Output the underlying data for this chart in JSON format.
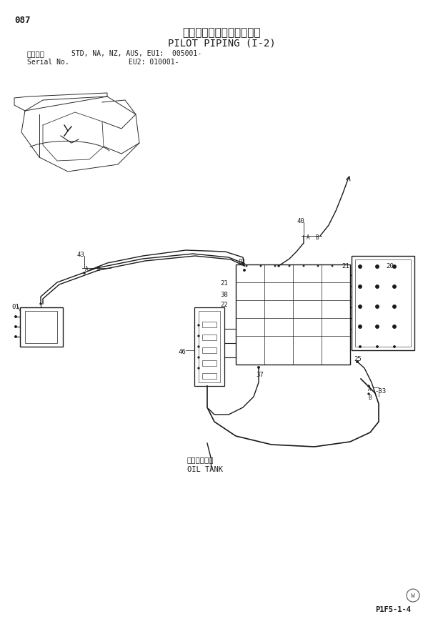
{
  "page_num": "087",
  "title_jp": "パイロット配管（１－２）",
  "title_en": "PILOT PIPING (I-2)",
  "model_label": "適用号機",
  "model_text": "STD, NA, NZ, AUS, EU1:  005001-",
  "serial_label": "Serial No.",
  "serial_eu2": "EU2: 010001-",
  "footer_code": "P1F5-1-4",
  "bg_color": "#ffffff",
  "line_color": "#1a1a1a",
  "text_color": "#1a1a1a",
  "oil_tank_jp": "オイルタンク",
  "oil_tank_en": "OIL TANK"
}
